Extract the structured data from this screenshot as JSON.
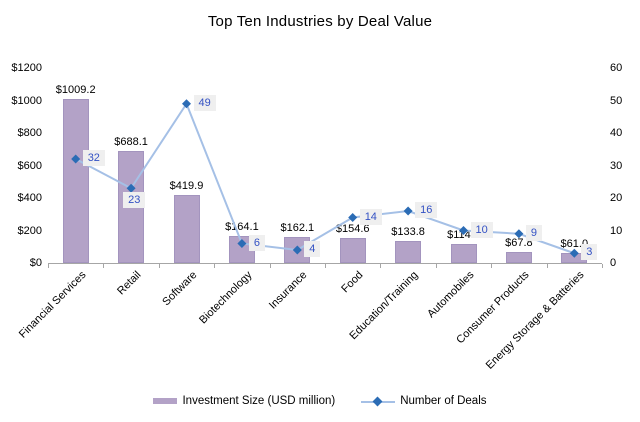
{
  "title": "Top Ten Industries by Deal Value",
  "chart_data": {
    "type": "combo",
    "title": "Top Ten Industries by Deal Value",
    "categories": [
      "Financial Services",
      "Retail",
      "Software",
      "Biotechnology",
      "Insurance",
      "Food",
      "Education/Training",
      "Automobiles",
      "Consumer Products",
      "Energy Storage & Batteries"
    ],
    "series": [
      {
        "name": "Investment Size (USD million)",
        "type": "bar",
        "axis": "left",
        "values": [
          1009.2,
          688.1,
          419.9,
          164.1,
          162.1,
          154.6,
          133.8,
          114.2,
          67.8,
          61.0
        ],
        "value_labels": [
          "$1009.2",
          "$688.1",
          "$419.9",
          "$164.1",
          "$162.1",
          "$154.6",
          "$133.8",
          "$114.2",
          "$67.8",
          "$61.0"
        ],
        "color": "#b3a2c7"
      },
      {
        "name": "Number of Deals",
        "type": "line",
        "axis": "right",
        "values": [
          32,
          23,
          49,
          6,
          4,
          14,
          16,
          10,
          9,
          3
        ],
        "value_labels": [
          "32",
          "23",
          "49",
          "6",
          "4",
          "14",
          "16",
          "10",
          "9",
          "3"
        ],
        "line_color": "#a5c0e6",
        "marker_color": "#2b6cb5",
        "label_text_color": "#3351c4",
        "label_bg_color": "#efefef"
      }
    ],
    "axes": {
      "left": {
        "min": 0,
        "max": 1200,
        "tick_values": [
          0,
          200,
          400,
          600,
          800,
          1000,
          1200
        ],
        "tick_labels": [
          "$0",
          "$200",
          "$400",
          "$600",
          "$800",
          "$1000",
          "$1200"
        ]
      },
      "right": {
        "min": 0,
        "max": 60,
        "tick_values": [
          0,
          10,
          20,
          30,
          40,
          50,
          60
        ],
        "tick_labels": [
          "0",
          "10",
          "20",
          "30",
          "40",
          "50",
          "60"
        ]
      }
    },
    "grid": "off",
    "legend": {
      "position": "bottom",
      "items": [
        "Investment Size (USD million)",
        "Number of Deals"
      ]
    }
  }
}
